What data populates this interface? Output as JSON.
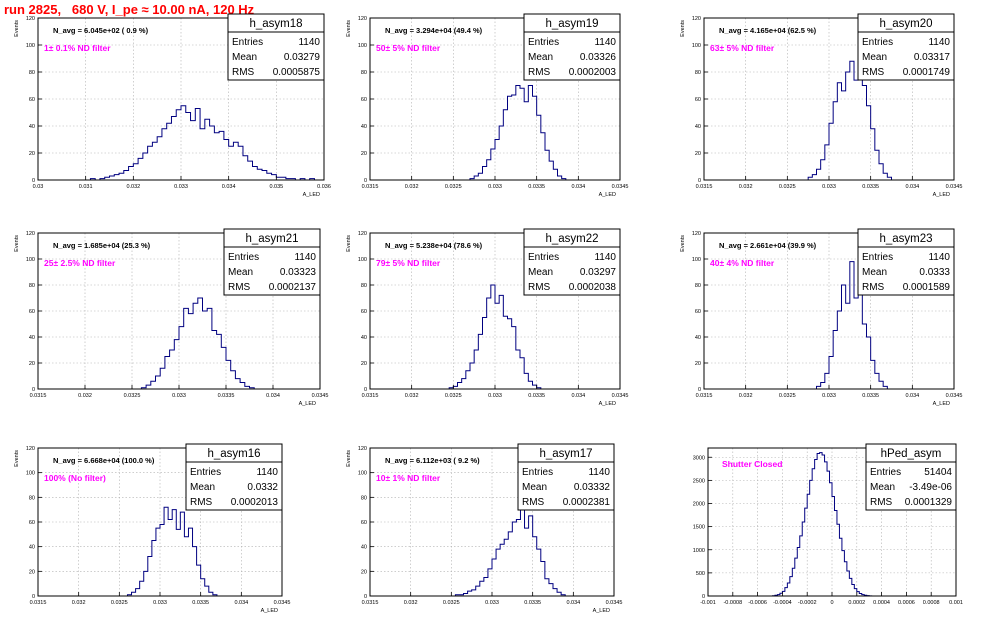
{
  "page": {
    "title": "run 2825,   680 V, I_pe ≈ 10.00 nA, 120 Hz",
    "colors": {
      "title": "#ff0000",
      "histogram": "#000080",
      "annotation": "#ff00ff",
      "grid": "#b0b0b0"
    }
  },
  "chart_data": [
    {
      "type": "histogram",
      "name": "h_asym18",
      "stats": {
        "entries_label": "Entries",
        "entries": "1140",
        "mean_label": "Mean",
        "mean": "0.03279",
        "rms_label": "RMS",
        "rms": "0.0005875"
      },
      "navg": "N_avg = 6.045e+02 ( 0.9 %)",
      "filter": "1± 0.1% ND filter",
      "xlabel": "A_LED",
      "ylabel": "Events",
      "xlim": [
        0.03,
        0.036
      ],
      "ylim": [
        0,
        120
      ],
      "xticks": [
        0.03,
        0.031,
        0.032,
        0.033,
        0.034,
        0.035,
        0.036
      ],
      "xtick_labels": [
        "0.03",
        "0.031",
        "0.032",
        "0.033",
        "0.034",
        "0.035",
        "0.036"
      ],
      "yticks": [
        0,
        20,
        40,
        60,
        80,
        100,
        120
      ],
      "ytick_labels": [
        "0",
        "20",
        "40",
        "60",
        "80",
        "100",
        "120"
      ],
      "grid": true,
      "bin_start": 0.0311,
      "bin_width": 0.0001,
      "counts": [
        1,
        0,
        1,
        2,
        3,
        4,
        5,
        7,
        10,
        12,
        16,
        20,
        25,
        28,
        32,
        38,
        42,
        47,
        52,
        55,
        50,
        44,
        53,
        38,
        45,
        40,
        35,
        36,
        30,
        25,
        28,
        25,
        18,
        14,
        10,
        8,
        7,
        5,
        4,
        2,
        2,
        1,
        1,
        0,
        1,
        0,
        1
      ]
    },
    {
      "type": "histogram",
      "name": "h_asym19",
      "stats": {
        "entries_label": "Entries",
        "entries": "1140",
        "mean_label": "Mean",
        "mean": "0.03326",
        "rms_label": "RMS",
        "rms": "0.0002003"
      },
      "navg": "N_avg = 3.294e+04 (49.4 %)",
      "filter": "50± 5% ND filter",
      "xlabel": "A_LED",
      "ylabel": "Events",
      "xlim": [
        0.0315,
        0.0345
      ],
      "ylim": [
        0,
        120
      ],
      "xticks": [
        0.0315,
        0.032,
        0.0325,
        0.033,
        0.0335,
        0.034,
        0.0345
      ],
      "xtick_labels": [
        "0.0315",
        "0.032",
        "0.0325",
        "0.033",
        "0.0335",
        "0.034",
        "0.0345"
      ],
      "yticks": [
        0,
        20,
        40,
        60,
        80,
        100,
        120
      ],
      "ytick_labels": [
        "0",
        "20",
        "40",
        "60",
        "80",
        "100",
        "120"
      ],
      "grid": true,
      "bin_start": 0.0327,
      "bin_width": 5e-05,
      "counts": [
        1,
        3,
        5,
        10,
        15,
        23,
        30,
        40,
        52,
        62,
        63,
        70,
        68,
        58,
        70,
        62,
        48,
        35,
        22,
        14,
        8,
        3,
        1
      ]
    },
    {
      "type": "histogram",
      "name": "h_asym20",
      "stats": {
        "entries_label": "Entries",
        "entries": "1140",
        "mean_label": "Mean",
        "mean": "0.03317",
        "rms_label": "RMS",
        "rms": "0.0001749"
      },
      "navg": "N_avg = 4.165e+04 (62.5 %)",
      "filter": "63± 5% ND filter",
      "xlabel": "A_LED",
      "ylabel": "Events",
      "xlim": [
        0.0315,
        0.0345
      ],
      "ylim": [
        0,
        120
      ],
      "xticks": [
        0.0315,
        0.032,
        0.0325,
        0.033,
        0.0335,
        0.034,
        0.0345
      ],
      "xtick_labels": [
        "0.0315",
        "0.032",
        "0.0325",
        "0.033",
        "0.0335",
        "0.034",
        "0.0345"
      ],
      "yticks": [
        0,
        20,
        40,
        60,
        80,
        100,
        120
      ],
      "ytick_labels": [
        "0",
        "20",
        "40",
        "60",
        "80",
        "100",
        "120"
      ],
      "grid": true,
      "bin_start": 0.03275,
      "bin_width": 5e-05,
      "counts": [
        2,
        4,
        8,
        15,
        26,
        42,
        58,
        72,
        66,
        80,
        88,
        74,
        82,
        70,
        55,
        38,
        22,
        12,
        5,
        2
      ]
    },
    {
      "type": "histogram",
      "name": "h_asym21",
      "stats": {
        "entries_label": "Entries",
        "entries": "1140",
        "mean_label": "Mean",
        "mean": "0.03323",
        "rms_label": "RMS",
        "rms": "0.0002137"
      },
      "navg": "N_avg = 1.685e+04 (25.3 %)",
      "filter": "25± 2.5% ND filter",
      "xlabel": "A_LED",
      "ylabel": "Events",
      "xlim": [
        0.0315,
        0.0345
      ],
      "ylim": [
        0,
        120
      ],
      "xticks": [
        0.0315,
        0.032,
        0.0325,
        0.033,
        0.0335,
        0.034,
        0.0345
      ],
      "xtick_labels": [
        "0.0315",
        "0.032",
        "0.0325",
        "0.033",
        "0.0335",
        "0.034",
        "0.0345"
      ],
      "yticks": [
        0,
        20,
        40,
        60,
        80,
        100,
        120
      ],
      "ytick_labels": [
        "0",
        "20",
        "40",
        "60",
        "80",
        "100",
        "120"
      ],
      "grid": true,
      "bin_start": 0.0326,
      "bin_width": 5e-05,
      "counts": [
        1,
        3,
        6,
        10,
        16,
        25,
        30,
        38,
        48,
        62,
        58,
        66,
        70,
        60,
        62,
        45,
        42,
        32,
        22,
        14,
        8,
        5,
        2,
        1
      ]
    },
    {
      "type": "histogram",
      "name": "h_asym22",
      "stats": {
        "entries_label": "Entries",
        "entries": "1140",
        "mean_label": "Mean",
        "mean": "0.03297",
        "rms_label": "RMS",
        "rms": "0.0002038"
      },
      "navg": "N_avg = 5.238e+04 (78.6 %)",
      "filter": "79± 5% ND filter",
      "xlabel": "A_LED",
      "ylabel": "Events",
      "xlim": [
        0.0315,
        0.0345
      ],
      "ylim": [
        0,
        120
      ],
      "xticks": [
        0.0315,
        0.032,
        0.0325,
        0.033,
        0.0335,
        0.034,
        0.0345
      ],
      "xtick_labels": [
        "0.0315",
        "0.032",
        "0.0325",
        "0.033",
        "0.0335",
        "0.034",
        "0.0345"
      ],
      "yticks": [
        0,
        20,
        40,
        60,
        80,
        100,
        120
      ],
      "ytick_labels": [
        "0",
        "20",
        "40",
        "60",
        "80",
        "100",
        "120"
      ],
      "grid": true,
      "bin_start": 0.03245,
      "bin_width": 5e-05,
      "counts": [
        1,
        2,
        5,
        8,
        14,
        20,
        30,
        42,
        55,
        70,
        80,
        66,
        72,
        56,
        54,
        48,
        30,
        24,
        12,
        6,
        3,
        1
      ]
    },
    {
      "type": "histogram",
      "name": "h_asym23",
      "stats": {
        "entries_label": "Entries",
        "entries": "1140",
        "mean_label": "Mean",
        "mean": "0.0333",
        "rms_label": "RMS",
        "rms": "0.0001589"
      },
      "navg": "N_avg = 2.661e+04 (39.9 %)",
      "filter": "40± 4% ND filter",
      "xlabel": "A_LED",
      "ylabel": "Events",
      "xlim": [
        0.0315,
        0.0345
      ],
      "ylim": [
        0,
        120
      ],
      "xticks": [
        0.0315,
        0.032,
        0.0325,
        0.033,
        0.0335,
        0.034,
        0.0345
      ],
      "xtick_labels": [
        "0.0315",
        "0.032",
        "0.0325",
        "0.033",
        "0.0335",
        "0.034",
        "0.0345"
      ],
      "yticks": [
        0,
        20,
        40,
        60,
        80,
        100,
        120
      ],
      "ytick_labels": [
        "0",
        "20",
        "40",
        "60",
        "80",
        "100",
        "120"
      ],
      "grid": true,
      "bin_start": 0.03285,
      "bin_width": 5e-05,
      "counts": [
        2,
        5,
        12,
        25,
        45,
        60,
        80,
        66,
        98,
        70,
        85,
        50,
        40,
        22,
        12,
        6,
        2
      ]
    },
    {
      "type": "histogram",
      "name": "h_asym16",
      "stats": {
        "entries_label": "Entries",
        "entries": "1140",
        "mean_label": "Mean",
        "mean": "0.0332",
        "rms_label": "RMS",
        "rms": "0.0002013"
      },
      "navg": "N_avg = 6.668e+04 (100.0 %)",
      "filter": "100% (No filter)",
      "xlabel": "A_LED",
      "ylabel": "Events",
      "xlim": [
        0.0315,
        0.0345
      ],
      "ylim": [
        0,
        120
      ],
      "xticks": [
        0.0315,
        0.032,
        0.0325,
        0.033,
        0.0335,
        0.034,
        0.0345
      ],
      "xtick_labels": [
        "0.0315",
        "0.032",
        "0.0325",
        "0.033",
        "0.0335",
        "0.034",
        "0.0345"
      ],
      "yticks": [
        0,
        20,
        40,
        60,
        80,
        100,
        120
      ],
      "ytick_labels": [
        "0",
        "20",
        "40",
        "60",
        "80",
        "100",
        "120"
      ],
      "grid": true,
      "bin_start": 0.0326,
      "bin_width": 5e-05,
      "counts": [
        1,
        3,
        6,
        12,
        20,
        32,
        45,
        55,
        58,
        72,
        62,
        70,
        54,
        68,
        48,
        55,
        40,
        25,
        14,
        8,
        3,
        1
      ]
    },
    {
      "type": "histogram",
      "name": "h_asym17",
      "stats": {
        "entries_label": "Entries",
        "entries": "1140",
        "mean_label": "Mean",
        "mean": "0.03332",
        "rms_label": "RMS",
        "rms": "0.0002381"
      },
      "navg": "N_avg = 6.112e+03 ( 9.2 %)",
      "filter": "10± 1% ND filter",
      "xlabel": "A_LED",
      "ylabel": "Events",
      "xlim": [
        0.0315,
        0.0345
      ],
      "ylim": [
        0,
        120
      ],
      "xticks": [
        0.0315,
        0.032,
        0.0325,
        0.033,
        0.0335,
        0.034,
        0.0345
      ],
      "xtick_labels": [
        "0.0315",
        "0.032",
        "0.0325",
        "0.033",
        "0.0335",
        "0.034",
        "0.0345"
      ],
      "yticks": [
        0,
        20,
        40,
        60,
        80,
        100,
        120
      ],
      "ytick_labels": [
        "0",
        "20",
        "40",
        "60",
        "80",
        "100",
        "120"
      ],
      "grid": true,
      "bin_start": 0.03255,
      "bin_width": 5e-05,
      "counts": [
        1,
        1,
        2,
        4,
        5,
        8,
        12,
        15,
        22,
        30,
        38,
        42,
        46,
        52,
        60,
        62,
        76,
        55,
        65,
        48,
        38,
        28,
        14,
        10,
        6,
        3,
        1
      ]
    },
    {
      "type": "histogram",
      "name": "hPed_asym",
      "stats": {
        "entries_label": "Entries",
        "entries": "51404",
        "mean_label": "Mean",
        "mean": "-3.49e-06",
        "rms_label": "RMS",
        "rms": "0.0001329"
      },
      "filter": "Shutter Closed",
      "xlabel": "",
      "ylabel": "",
      "xlim": [
        -0.001,
        0.001
      ],
      "ylim": [
        0,
        3200
      ],
      "xticks": [
        -0.001,
        -0.0008,
        -0.0006,
        -0.0004,
        -0.0002,
        0,
        0.0002,
        0.0004,
        0.0006,
        0.0008,
        0.001
      ],
      "xtick_labels": [
        "-0.001",
        "-0.0008",
        "-0.0006",
        "-0.0004",
        "-0.0002",
        "0",
        "0.0002",
        "0.0004",
        "0.0006",
        "0.0008",
        "0.001"
      ],
      "yticks": [
        0,
        500,
        1000,
        1500,
        2000,
        2500,
        3000
      ],
      "ytick_labels": [
        "0",
        "500",
        "1000",
        "1500",
        "2000",
        "2500",
        "3000"
      ],
      "grid": true,
      "bin_start": -0.00048,
      "bin_width": 2e-05,
      "counts": [
        5,
        15,
        30,
        60,
        100,
        180,
        280,
        420,
        600,
        820,
        1050,
        1300,
        1600,
        1900,
        2200,
        2500,
        2750,
        2950,
        3080,
        3100,
        3050,
        2900,
        2700,
        2450,
        2150,
        1850,
        1550,
        1250,
        980,
        740,
        540,
        380,
        250,
        160,
        95,
        55,
        30,
        15,
        8,
        3
      ]
    }
  ]
}
